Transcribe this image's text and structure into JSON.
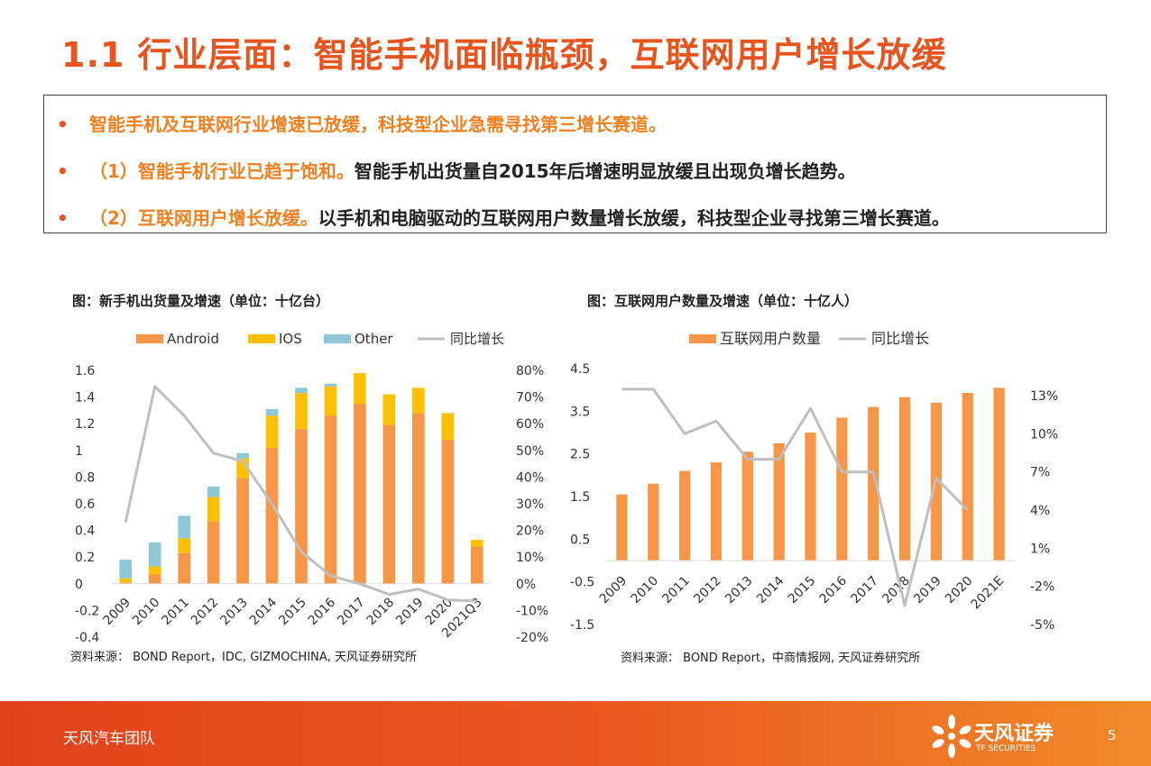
{
  "title": "1.1 行业层面：智能手机面临瓶颈，互联网用户增长放缓",
  "bullets": [
    {
      "marker": "•",
      "highlight": "智能手机及互联网行业增速已放缓，科技型企业急需寻找第三增长赛道。",
      "text": ""
    },
    {
      "marker": "•",
      "highlight": "（1）智能手机行业已趋于饱和。",
      "text": "智能手机出货量自2015年后增速明显放缓且出现负增长趋势。"
    },
    {
      "marker": "•",
      "highlight": "（2）互联网用户增长放缓。",
      "text": "以手机和电脑驱动的互联网用户数量增长放缓，科技型企业寻找第三增长赛道。"
    }
  ],
  "chart_data": [
    {
      "type": "bar",
      "title": "图：新手机出货量及增速（单位：十亿台）",
      "source": "资料来源：  BOND Report，IDC, GIZMOCHINA, 天风证券研究所",
      "categories": [
        "2009",
        "2010",
        "2011",
        "2012",
        "2013",
        "2014",
        "2015",
        "2016",
        "2017",
        "2018",
        "2019",
        "2020",
        "2021Q3"
      ],
      "stacked": true,
      "series": [
        {
          "name": "Android",
          "color": "#f79646",
          "values": [
            0.01,
            0.07,
            0.23,
            0.47,
            0.79,
            1.02,
            1.16,
            1.26,
            1.35,
            1.19,
            1.28,
            1.08,
            0.28
          ]
        },
        {
          "name": "IOS",
          "color": "#ffc000",
          "values": [
            0.03,
            0.06,
            0.11,
            0.18,
            0.15,
            0.24,
            0.27,
            0.22,
            0.23,
            0.23,
            0.19,
            0.2,
            0.05
          ]
        },
        {
          "name": "Other",
          "color": "#8ec7d6",
          "values": [
            0.14,
            0.18,
            0.17,
            0.08,
            0.04,
            0.05,
            0.04,
            0.02,
            0.0,
            0.0,
            0.0,
            0.0,
            0.0
          ]
        }
      ],
      "line": {
        "name": "同比增长",
        "color": "#bfbfbf",
        "values": [
          23,
          74,
          63,
          49,
          46,
          30,
          12,
          3,
          0,
          -4,
          -2,
          -6,
          -6.5
        ]
      },
      "ylim": [
        -0.4,
        1.6
      ],
      "yticks": [
        "1.6",
        "1.4",
        "1.2",
        "1",
        "0.8",
        "0.6",
        "0.4",
        "0.2",
        "0",
        "-0.2",
        "-0.4"
      ],
      "y2lim": [
        -20,
        80
      ],
      "y2ticks": [
        "80%",
        "70%",
        "60%",
        "50%",
        "40%",
        "30%",
        "20%",
        "10%",
        "0%",
        "-10%",
        "-20%"
      ],
      "legend_position": "top"
    },
    {
      "type": "bar",
      "title": "图：互联网用户数量及增速（单位：十亿人）",
      "source": "资料来源：  BOND Report，中商情报网, 天风证券研究所",
      "categories": [
        "2009",
        "2010",
        "2011",
        "2012",
        "2013",
        "2014",
        "2015",
        "2016",
        "2017",
        "2018",
        "2019",
        "2020",
        "2021E"
      ],
      "series": [
        {
          "name": "互联网用户数量",
          "color": "#f79646",
          "values": [
            1.55,
            1.8,
            2.1,
            2.3,
            2.55,
            2.75,
            3.0,
            3.35,
            3.6,
            3.83,
            3.7,
            3.93,
            4.05
          ]
        }
      ],
      "line": {
        "name": "同比增长",
        "color": "#bfbfbf",
        "values": [
          13.5,
          13.5,
          10,
          11,
          8,
          8,
          12,
          7,
          7,
          -3.5,
          6.5,
          4
        ]
      },
      "ylim": [
        -1.5,
        4.5
      ],
      "yticks": [
        "4.5",
        "3.5",
        "2.5",
        "1.5",
        "0.5",
        "-0.5",
        "-1.5"
      ],
      "y2lim": [
        -5,
        13
      ],
      "y2ticks": [
        "13%",
        "10%",
        "7%",
        "4%",
        "1%",
        "-2%",
        "-5%"
      ],
      "legend_position": "top"
    }
  ],
  "footer": {
    "team": "天风汽车团队",
    "brand_cn": "天风证券",
    "brand_en": "TF SECURITIES",
    "page": "5",
    "accent": "#e8541e"
  }
}
